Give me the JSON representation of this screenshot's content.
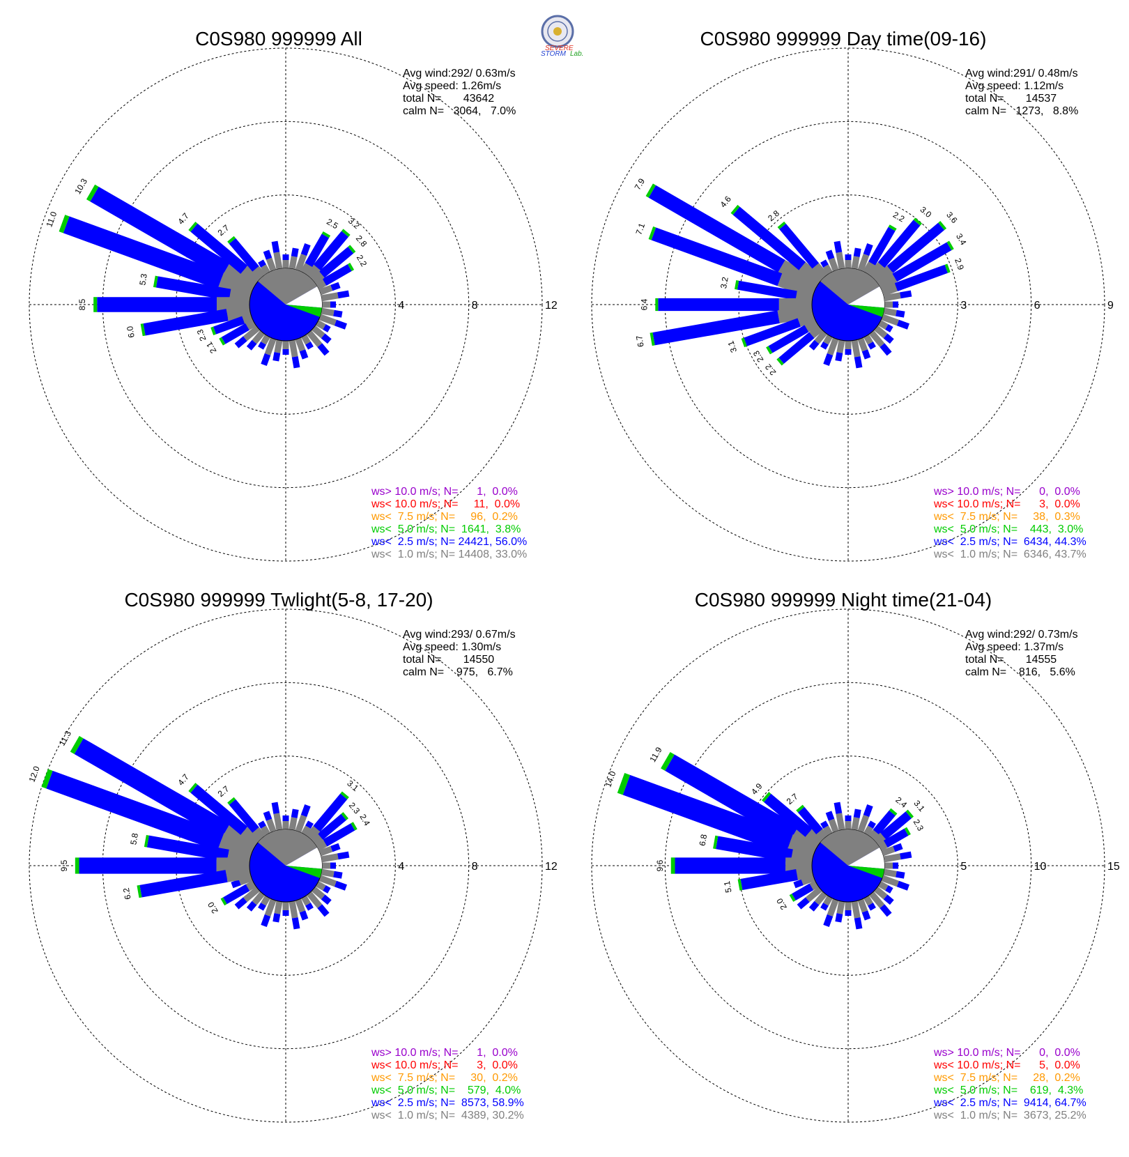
{
  "logo": {
    "word1": "SEVERE",
    "word2": "STORM",
    "word3": "Lab.",
    "colors": {
      "seal": "#5b6fa8",
      "severe": "#e03020",
      "storm": "#2040d0",
      "lab": "#20a020"
    }
  },
  "colors": {
    "gt10": "#9900cc",
    "lt10": "#ff0000",
    "lt7_5": "#ff9900",
    "lt5": "#00cc00",
    "lt2_5": "#0000ff",
    "lt1": "#808080",
    "grid": "#000000"
  },
  "chart_data": [
    {
      "type": "wind-rose",
      "title": "C0S980 999999 All",
      "ring_max": 12,
      "ring_labels": [
        "4",
        "8",
        "12"
      ],
      "stats": [
        "Avg wind:292/ 0.63m/s",
        "Avg speed: 1.26m/s",
        "total N=       43642",
        "calm N=   3064,   7.0%"
      ],
      "legend": [
        {
          "text": "ws> 10.0 m/s; N=      1,  0.0%",
          "color": "#9900cc"
        },
        {
          "text": "ws< 10.0 m/s; N=     11,  0.0%",
          "color": "#ff0000"
        },
        {
          "text": "ws<  7.5 m/s; N=     96,  0.2%",
          "color": "#ff9900"
        },
        {
          "text": "ws<  5.0 m/s; N=  1641,  3.8%",
          "color": "#00cc00"
        },
        {
          "text": "ws<  2.5 m/s; N= 24421, 56.0%",
          "color": "#0000ff"
        },
        {
          "text": "ws<  1.0 m/s; N= 14408, 33.0%",
          "color": "#808080"
        }
      ],
      "petals": [
        {
          "dir": 60,
          "total": 2.2
        },
        {
          "dir": 50,
          "total": 2.8
        },
        {
          "dir": 40,
          "total": 3.2
        },
        {
          "dir": 30,
          "total": 2.5
        },
        {
          "dir": 300,
          "total": 10.3
        },
        {
          "dir": 290,
          "total": 11.0
        },
        {
          "dir": 310,
          "total": 4.7
        },
        {
          "dir": 320,
          "total": 2.7
        },
        {
          "dir": 280,
          "total": 5.3
        },
        {
          "dir": 270,
          "total": 8.5
        },
        {
          "dir": 260,
          "total": 6.0
        },
        {
          "dir": 250,
          "total": 2.3
        },
        {
          "dir": 240,
          "total": 2.1
        }
      ]
    },
    {
      "type": "wind-rose",
      "title": "C0S980 999999 Day time(09-16)",
      "ring_max": 9,
      "ring_labels": [
        "3",
        "6",
        "9"
      ],
      "stats": [
        "Avg wind:291/ 0.48m/s",
        "Avg speed: 1.12m/s",
        "total N=       14537",
        "calm N=   1273,   8.8%"
      ],
      "legend": [
        {
          "text": "ws> 10.0 m/s; N=      0,  0.0%",
          "color": "#9900cc"
        },
        {
          "text": "ws< 10.0 m/s; N=      3,  0.0%",
          "color": "#ff0000"
        },
        {
          "text": "ws<  7.5 m/s; N=     38,  0.3%",
          "color": "#ff9900"
        },
        {
          "text": "ws<  5.0 m/s; N=    443,  3.0%",
          "color": "#00cc00"
        },
        {
          "text": "ws<  2.5 m/s; N=  6434, 44.3%",
          "color": "#0000ff"
        },
        {
          "text": "ws<  1.0 m/s; N=  6346, 43.7%",
          "color": "#808080"
        }
      ],
      "petals": [
        {
          "dir": 300,
          "total": 7.9
        },
        {
          "dir": 290,
          "total": 7.1
        },
        {
          "dir": 310,
          "total": 4.6
        },
        {
          "dir": 320,
          "total": 2.8
        },
        {
          "dir": 280,
          "total": 3.2
        },
        {
          "dir": 270,
          "total": 6.4
        },
        {
          "dir": 260,
          "total": 6.7
        },
        {
          "dir": 250,
          "total": 3.1
        },
        {
          "dir": 240,
          "total": 2.3
        },
        {
          "dir": 230,
          "total": 2.2
        },
        {
          "dir": 30,
          "total": 2.2
        },
        {
          "dir": 40,
          "total": 3.0
        },
        {
          "dir": 50,
          "total": 3.6
        },
        {
          "dir": 60,
          "total": 3.4
        },
        {
          "dir": 70,
          "total": 2.9
        }
      ]
    },
    {
      "type": "wind-rose",
      "title": "C0S980 999999 Twlight(5-8, 17-20)",
      "ring_max": 12,
      "ring_labels": [
        "4",
        "8",
        "12"
      ],
      "stats": [
        "Avg wind:293/ 0.67m/s",
        "Avg speed: 1.30m/s",
        "total N=       14550",
        "calm N=    975,   6.7%"
      ],
      "legend": [
        {
          "text": "ws> 10.0 m/s; N=      1,  0.0%",
          "color": "#9900cc"
        },
        {
          "text": "ws< 10.0 m/s; N=      3,  0.0%",
          "color": "#ff0000"
        },
        {
          "text": "ws<  7.5 m/s; N=     30,  0.2%",
          "color": "#ff9900"
        },
        {
          "text": "ws<  5.0 m/s; N=    579,  4.0%",
          "color": "#00cc00"
        },
        {
          "text": "ws<  2.5 m/s; N=  8573, 58.9%",
          "color": "#0000ff"
        },
        {
          "text": "ws<  1.0 m/s; N=  4389, 30.2%",
          "color": "#808080"
        }
      ],
      "petals": [
        {
          "dir": 300,
          "total": 11.3
        },
        {
          "dir": 290,
          "total": 12.0
        },
        {
          "dir": 310,
          "total": 4.7
        },
        {
          "dir": 320,
          "total": 2.7
        },
        {
          "dir": 280,
          "total": 5.8
        },
        {
          "dir": 270,
          "total": 9.5
        },
        {
          "dir": 260,
          "total": 6.2
        },
        {
          "dir": 240,
          "total": 2.0
        },
        {
          "dir": 50,
          "total": 2.3
        },
        {
          "dir": 40,
          "total": 3.1
        },
        {
          "dir": 60,
          "total": 2.4
        }
      ]
    },
    {
      "type": "wind-rose",
      "title": "C0S980 999999 Night time(21-04)",
      "ring_max": 15,
      "ring_labels": [
        "5",
        "10",
        "15"
      ],
      "stats": [
        "Avg wind:292/ 0.73m/s",
        "Avg speed: 1.37m/s",
        "total N=       14555",
        "calm N=    816,   5.6%"
      ],
      "legend": [
        {
          "text": "ws> 10.0 m/s; N=      0,  0.0%",
          "color": "#9900cc"
        },
        {
          "text": "ws< 10.0 m/s; N=      5,  0.0%",
          "color": "#ff0000"
        },
        {
          "text": "ws<  7.5 m/s; N=     28,  0.2%",
          "color": "#ff9900"
        },
        {
          "text": "ws<  5.0 m/s; N=    619,  4.3%",
          "color": "#00cc00"
        },
        {
          "text": "ws<  2.5 m/s; N=  9414, 64.7%",
          "color": "#0000ff"
        },
        {
          "text": "ws<  1.0 m/s; N=  3673, 25.2%",
          "color": "#808080"
        }
      ],
      "petals": [
        {
          "dir": 300,
          "total": 11.9
        },
        {
          "dir": 290,
          "total": 14.0
        },
        {
          "dir": 310,
          "total": 4.9
        },
        {
          "dir": 320,
          "total": 2.7
        },
        {
          "dir": 280,
          "total": 6.8
        },
        {
          "dir": 270,
          "total": 9.6
        },
        {
          "dir": 260,
          "total": 5.1
        },
        {
          "dir": 240,
          "total": 2.0
        },
        {
          "dir": 40,
          "total": 2.4
        },
        {
          "dir": 50,
          "total": 3.1
        },
        {
          "dir": 60,
          "total": 2.3
        }
      ]
    }
  ]
}
